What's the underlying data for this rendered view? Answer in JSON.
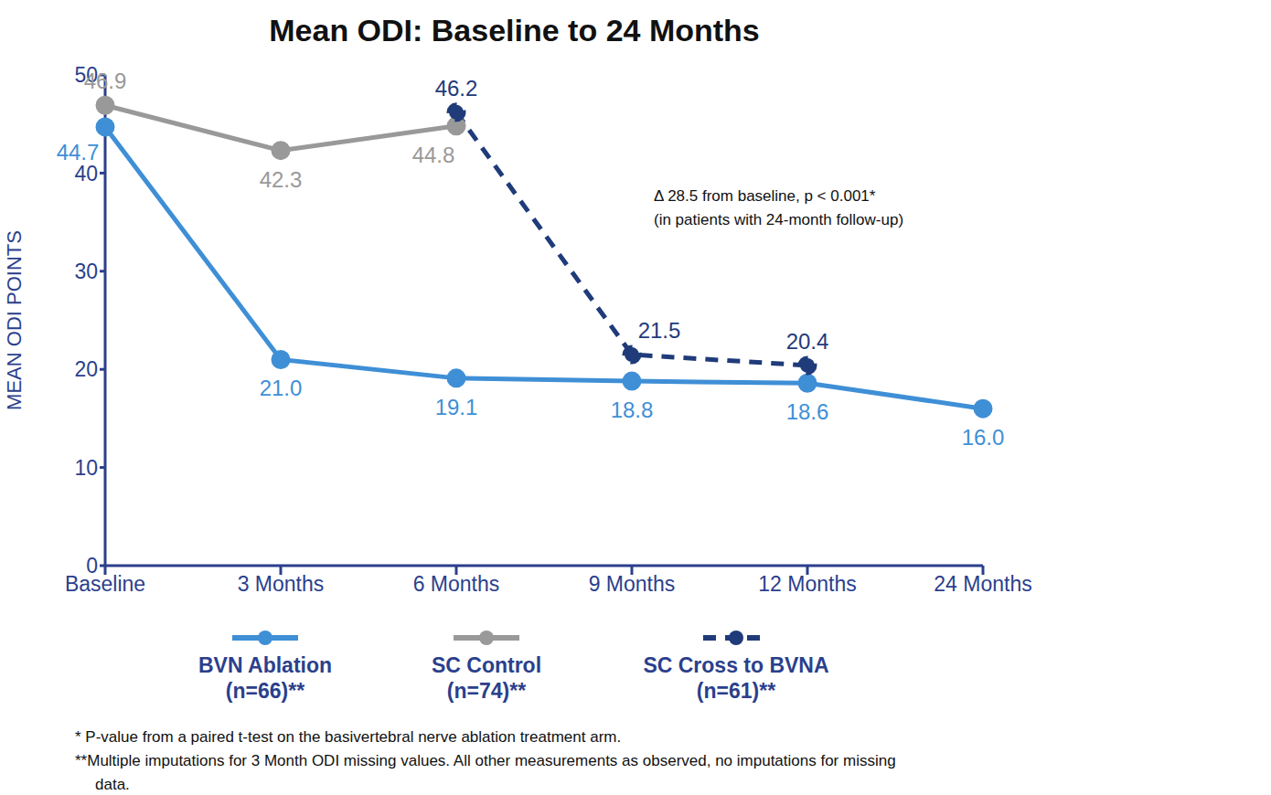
{
  "chart_data": {
    "type": "line",
    "title": "Mean ODI: Baseline to 24 Months",
    "y_label": "MEAN ODI POINTS",
    "annotation": [
      "Δ 28.5 from baseline, p < 0.001*",
      "(in patients with 24-month follow-up)"
    ],
    "footnotes": [
      "*  P-value from a paired t-test on the basivertebral nerve ablation treatment arm.",
      "**Multiple imputations for 3 Month ODI missing values. All other measurements as observed, no imputations for missing data."
    ],
    "categories": [
      "Baseline",
      "3 Months",
      "6 Months",
      "9 Months",
      "12 Months",
      "24 Months"
    ],
    "series": [
      {
        "name": "BVN Ablation (n=66)**",
        "color": "#3f8fd6",
        "line_style": "solid",
        "marker": "circle",
        "values": [
          44.7,
          21.0,
          19.1,
          18.8,
          18.6,
          16.0
        ],
        "value_labels": [
          "44.7",
          "21.0",
          "19.1",
          "18.8",
          "18.6",
          "16.0"
        ]
      },
      {
        "name": "SC Control (n=74)**",
        "color": "#999999",
        "line_style": "solid",
        "marker": "circle",
        "values": [
          46.9,
          42.3,
          44.8,
          null,
          null,
          null
        ],
        "value_labels": [
          "46.9",
          "42.3",
          "44.8",
          null,
          null,
          null
        ]
      },
      {
        "name": "SC Cross to BVNA (n=61)**",
        "color": "#1f3b7a",
        "line_style": "dashed",
        "marker": "circle",
        "values": [
          null,
          null,
          46.2,
          21.5,
          20.4,
          null
        ],
        "value_labels": [
          null,
          null,
          "46.2",
          "21.5",
          "20.4",
          null
        ]
      }
    ],
    "ylim": [
      0,
      50
    ],
    "yticks": [
      0,
      10,
      20,
      30,
      40,
      50
    ],
    "grid": false,
    "data_labels": true,
    "legend": "bottom"
  }
}
